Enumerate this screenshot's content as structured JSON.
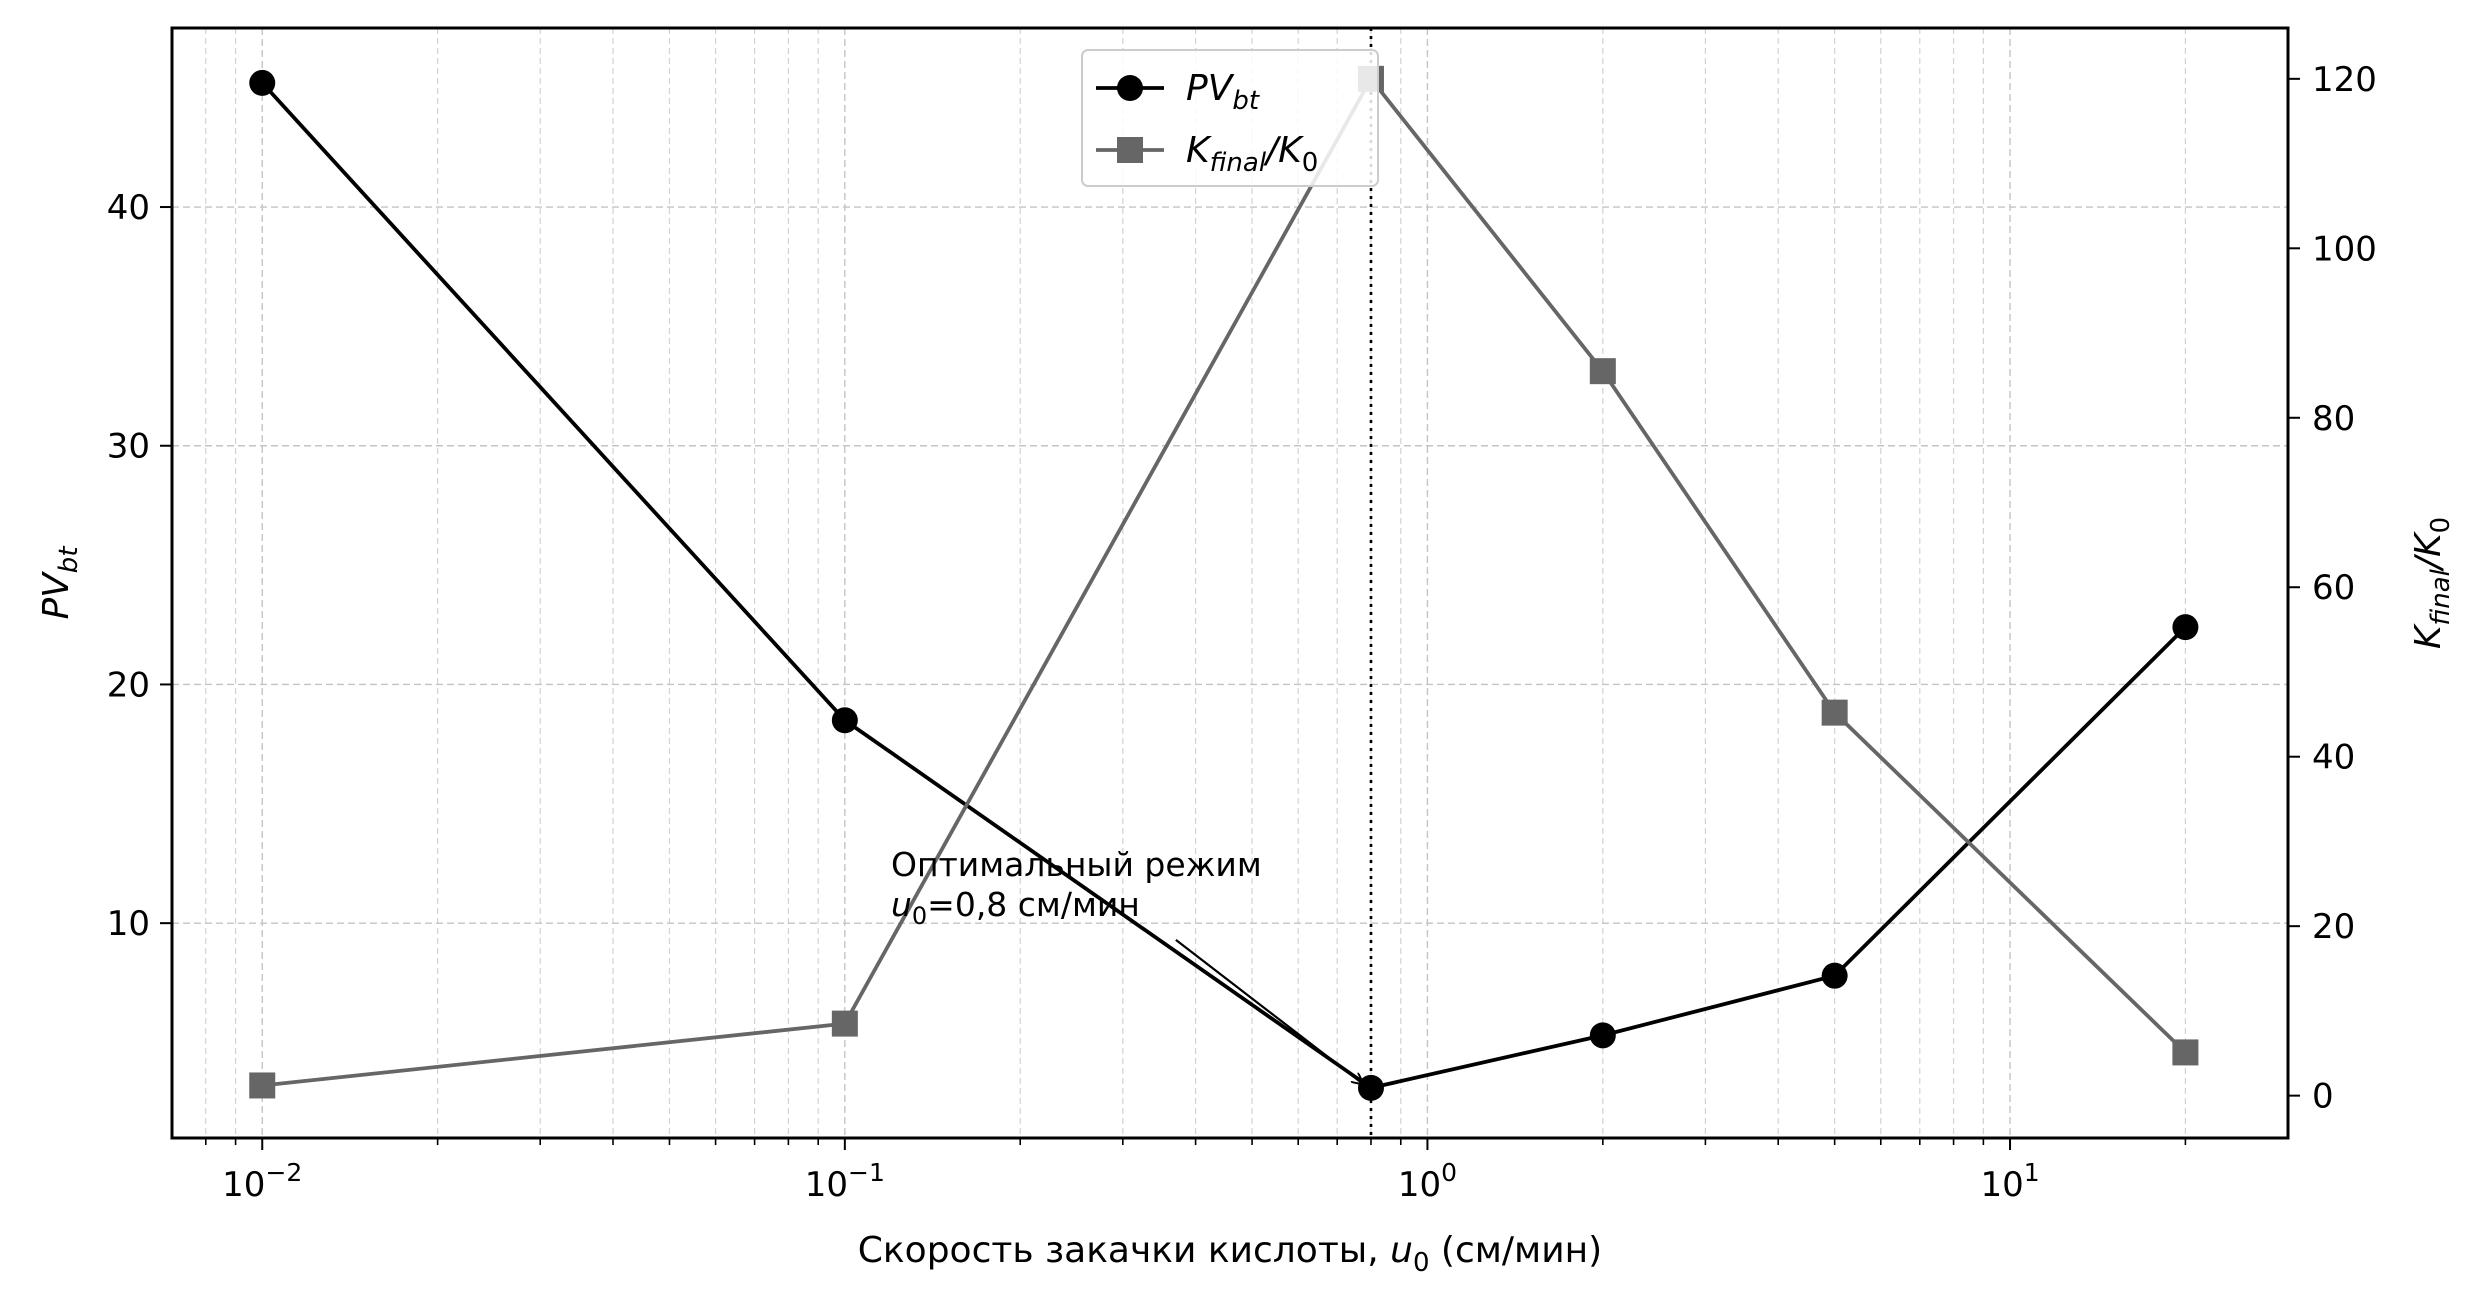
{
  "chart_data": {
    "type": "line",
    "x_scale": "log",
    "xlim": [
      0.007,
      30
    ],
    "x": [
      0.01,
      0.1,
      0.8,
      2,
      5,
      20
    ],
    "x_ticks": [
      {
        "value": 0.01,
        "base": "10",
        "exp": "−2"
      },
      {
        "value": 0.1,
        "base": "10",
        "exp": "−1"
      },
      {
        "value": 1,
        "base": "10",
        "exp": "0"
      },
      {
        "value": 10,
        "base": "10",
        "exp": "1"
      }
    ],
    "xlabel": {
      "pre": "Скорость закачки кислоты, ",
      "var": "u",
      "sub": "0",
      "post": " (см/мин)"
    },
    "left_axis": {
      "ylim": [
        1,
        47.5
      ],
      "ticks": [
        "10",
        "20",
        "30",
        "40"
      ],
      "label": {
        "main": "PV",
        "sub": "bt"
      }
    },
    "right_axis": {
      "ylim": [
        -5,
        126
      ],
      "ticks": [
        "0",
        "20",
        "40",
        "60",
        "80",
        "100",
        "120"
      ],
      "label": {
        "main": "K",
        "sub": "final",
        "rest": "/K",
        "sub2": "0"
      }
    },
    "series": [
      {
        "axis": "left",
        "marker": "circle",
        "color": "#000000",
        "values": [
          45.2,
          18.5,
          3.1,
          5.3,
          7.8,
          22.4
        ],
        "legend": {
          "main": "PV",
          "sub": "bt"
        }
      },
      {
        "axis": "right",
        "marker": "square",
        "color": "#666666",
        "values": [
          1.2,
          8.5,
          120,
          85.5,
          45.2,
          5.1
        ],
        "legend": {
          "main": "K",
          "sub": "final",
          "rest": "/K",
          "sub2": "0"
        }
      }
    ],
    "vline": {
      "x": 0.8,
      "style": "dotted"
    },
    "annotation": {
      "line1": "Оптимальный режим",
      "line2_var": "u",
      "line2_sub": "0",
      "line2_rest": "=0,8 см/мин",
      "text_at": {
        "x": 0.12,
        "y": 10.3
      },
      "arrow_from": {
        "x": 0.37,
        "y": 9.3
      },
      "arrow_to": {
        "x": 0.8,
        "y": 3.1
      }
    },
    "grid": true,
    "legend_position": "top-center"
  }
}
